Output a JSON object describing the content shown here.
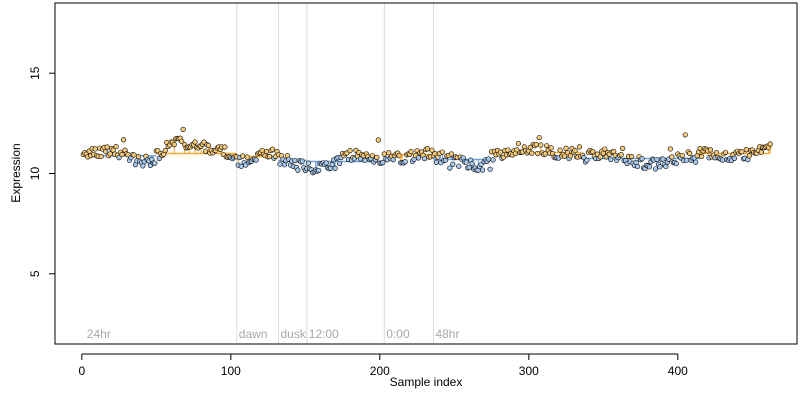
{
  "chart_data": {
    "type": "scatter",
    "title": "",
    "xlabel": "Sample index",
    "ylabel": "Expression",
    "xlim": [
      -18,
      480
    ],
    "ylim": [
      1.5,
      18.5
    ],
    "x_ticks": [
      {
        "value": 0,
        "label": "0"
      },
      {
        "value": 100,
        "label": "100"
      },
      {
        "value": 200,
        "label": "200"
      },
      {
        "value": 300,
        "label": "300"
      },
      {
        "value": 400,
        "label": "400"
      }
    ],
    "y_ticks": [
      {
        "value": 5,
        "label": "5"
      },
      {
        "value": 10,
        "label": "10"
      },
      {
        "value": 15,
        "label": "15"
      }
    ],
    "grid": false,
    "segment_markers": [
      {
        "x": 104,
        "label": "dawn"
      },
      {
        "x": 132,
        "label": "dusk"
      },
      {
        "x": 151,
        "label": "12:00"
      },
      {
        "x": 203,
        "label": "0:00"
      },
      {
        "x": 236,
        "label": "48hr"
      }
    ],
    "segment_labels_extra": [
      {
        "x": 2,
        "label": "24hr"
      }
    ],
    "fit_blocks": [
      {
        "x0": 0,
        "x1": 50,
        "y": 10.88,
        "color": "#6e9fd8"
      },
      {
        "x0": 50,
        "x1": 104,
        "y": 11.0,
        "color": "#f0a830"
      },
      {
        "x0": 104,
        "x1": 132,
        "y": 10.85,
        "color": "#f0a830"
      },
      {
        "x0": 132,
        "x1": 151,
        "y": 10.65,
        "color": "#6e9fd8"
      },
      {
        "x0": 151,
        "x1": 203,
        "y": 10.6,
        "color": "#6e9fd8"
      },
      {
        "x0": 203,
        "x1": 236,
        "y": 10.95,
        "color": "#f0a830"
      },
      {
        "x0": 236,
        "x1": 275,
        "y": 10.7,
        "color": "#6e9fd8"
      },
      {
        "x0": 275,
        "x1": 335,
        "y": 11.05,
        "color": "#f0a830"
      },
      {
        "x0": 335,
        "x1": 415,
        "y": 10.75,
        "color": "#6e9fd8"
      },
      {
        "x0": 415,
        "x1": 462,
        "y": 11.0,
        "color": "#f0a830"
      }
    ],
    "point_fill_high": "#f5c97a",
    "point_fill_low": "#a8c8ee",
    "point_stroke": "#000000",
    "n_points": 462,
    "y_center": 10.8,
    "y_range_observed": [
      9.8,
      12.2
    ]
  }
}
